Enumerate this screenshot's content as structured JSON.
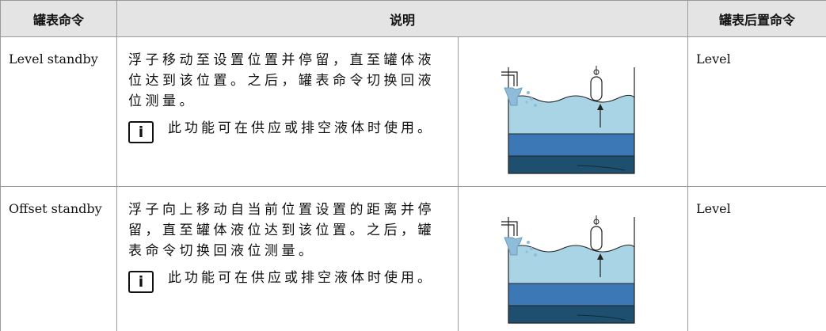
{
  "table": {
    "header": [
      "罐表命令",
      "说明",
      "罐表后置命令"
    ],
    "rows": [
      {
        "command": "Level standby",
        "description": "浮子移动至设置位置并停留，直至罐体液位达到该位置。之后，罐表命令切换回液位测量。",
        "note": "此功能可在供应或排空液体时使用。",
        "next": "Level"
      },
      {
        "command": "Offset standby",
        "description": "浮子向上移动自当前位置设置的距离并停留，直至罐体液位达到该位置。之后，罐表命令切换回液位测量。",
        "note": "此功能可在供应或排空液体时使用。",
        "next": "Level"
      }
    ]
  }
}
